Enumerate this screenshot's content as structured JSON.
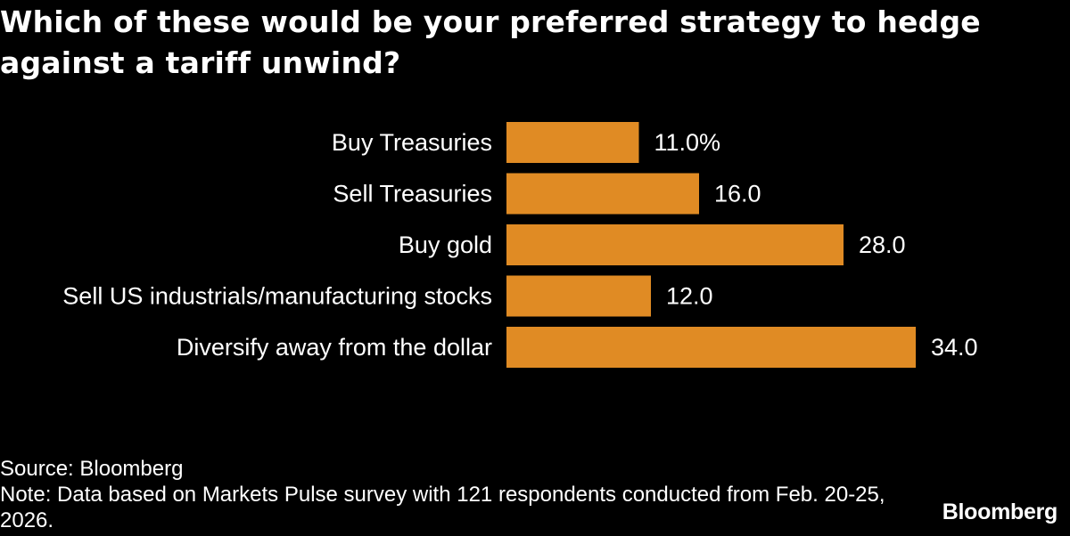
{
  "colors": {
    "background": "#000000",
    "bar": "#e08b24",
    "text": "#ffffff"
  },
  "chart_data": {
    "type": "bar",
    "orientation": "horizontal",
    "title": "Which of these would be your preferred strategy to hedge against a tariff unwind?",
    "categories": [
      "Buy Treasuries",
      "Sell Treasuries",
      "Buy gold",
      "Sell US industrials/manufacturing stocks",
      "Diversify away from the dollar"
    ],
    "values": [
      11.0,
      16.0,
      28.0,
      12.0,
      34.0
    ],
    "value_labels": [
      "11.0%",
      "16.0",
      "28.0",
      "12.0",
      "34.0"
    ],
    "unit": "%",
    "xlim": [
      0,
      34
    ],
    "grid": false,
    "legend": "none"
  },
  "footer": {
    "source": "Source: Bloomberg",
    "note": "Note: Data based on Markets Pulse survey with 121 respondents conducted from Feb. 20-25, 2026."
  },
  "brand": "Bloomberg"
}
